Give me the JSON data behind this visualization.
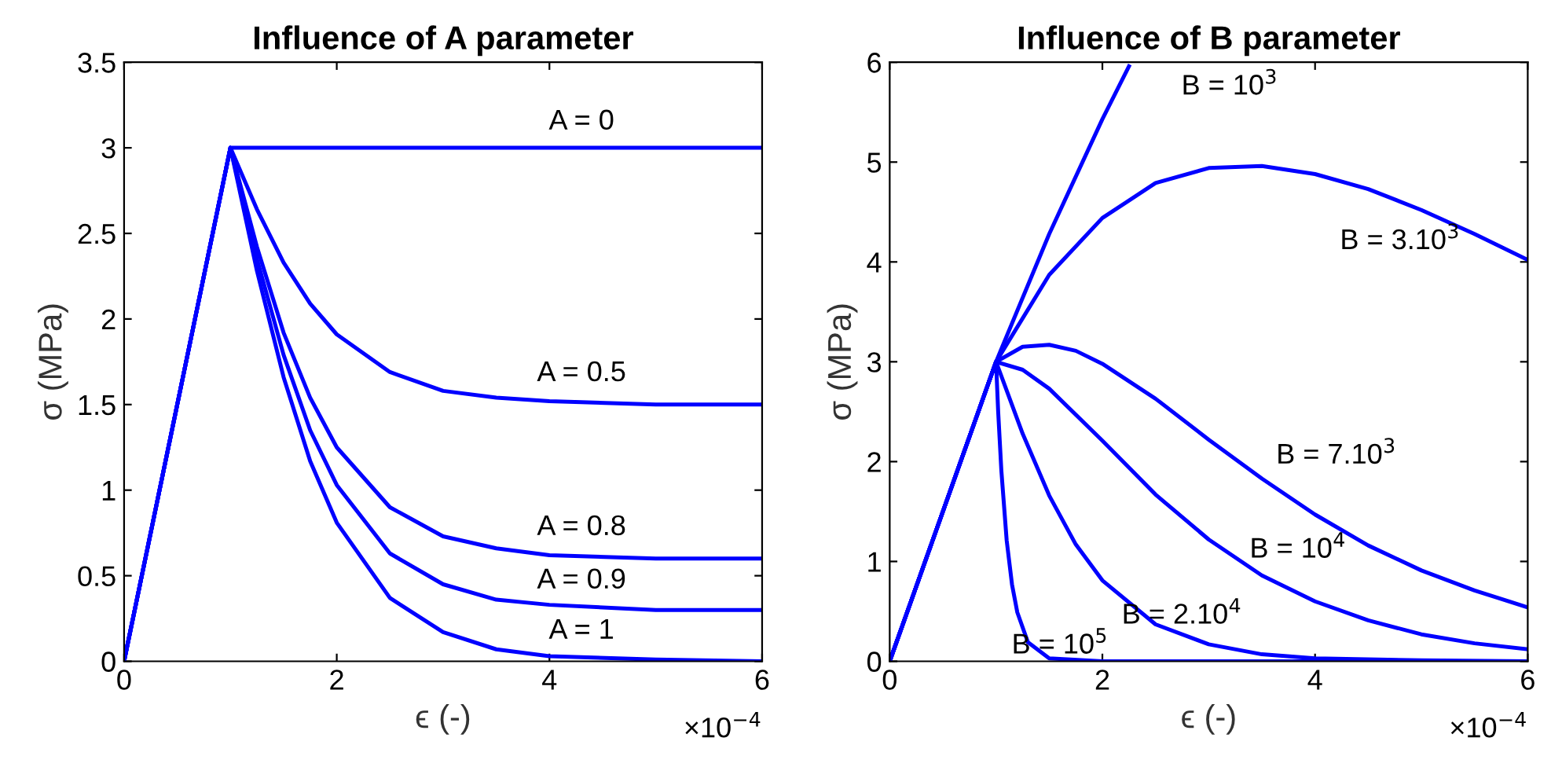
{
  "chart_data": [
    {
      "type": "line",
      "title": "Influence of A parameter",
      "xlabel": "ϵ (-)",
      "ylabel": "σ (MPa)",
      "xlim": [
        0,
        6
      ],
      "xticks": [
        0,
        2,
        4,
        6
      ],
      "ylim": [
        0,
        3.5
      ],
      "yticks": [
        0,
        0.5,
        1,
        1.5,
        2,
        2.5,
        3,
        3.5
      ],
      "grid": false,
      "legend": false,
      "marker": "none",
      "line_style": "solid",
      "x": [
        0,
        1,
        1.25,
        1.5,
        1.75,
        2,
        2.5,
        3,
        3.5,
        4,
        5,
        6
      ],
      "series": [
        {
          "name": "A = 0",
          "color": "#0000ff",
          "values": [
            0,
            3,
            3,
            3,
            3,
            3,
            3,
            3,
            3,
            3,
            3,
            3
          ]
        },
        {
          "name": "A = 0.5",
          "color": "#0000ff",
          "values": [
            0,
            3,
            2.64,
            2.33,
            2.09,
            1.91,
            1.69,
            1.58,
            1.54,
            1.52,
            1.5,
            1.5
          ]
        },
        {
          "name": "A = 0.8",
          "color": "#0000ff",
          "values": [
            0,
            3,
            2.42,
            1.92,
            1.54,
            1.25,
            0.9,
            0.73,
            0.66,
            0.62,
            0.6,
            0.6
          ]
        },
        {
          "name": "A = 0.9",
          "color": "#0000ff",
          "values": [
            0,
            3,
            2.35,
            1.79,
            1.35,
            1.03,
            0.63,
            0.45,
            0.36,
            0.33,
            0.3,
            0.3
          ]
        },
        {
          "name": "A = 1",
          "color": "#0000ff",
          "values": [
            0,
            3,
            2.28,
            1.66,
            1.17,
            0.81,
            0.37,
            0.17,
            0.07,
            0.03,
            0.01,
            0
          ]
        }
      ],
      "annotations": [
        "×10$^{−4}$"
      ]
    },
    {
      "type": "line",
      "title": "Influence of B parameter",
      "xlabel": "ϵ (-)",
      "ylabel": "σ (MPa)",
      "xlim": [
        0,
        6
      ],
      "xticks": [
        0,
        2,
        4,
        6
      ],
      "ylim": [
        0,
        6
      ],
      "yticks": [
        0,
        1,
        2,
        3,
        4,
        5,
        6
      ],
      "grid": false,
      "legend": false,
      "marker": "none",
      "line_style": "solid",
      "series": [
        {
          "name": "B = 10$^{3}$",
          "color": "#0000ff",
          "x": [
            0,
            1,
            1.5,
            2,
            2.25
          ],
          "values": [
            0,
            3,
            4.28,
            5.43,
            5.96
          ]
        },
        {
          "name": "B = 3.10$^{3}$",
          "color": "#0000ff",
          "x": [
            0,
            1,
            1.5,
            2,
            2.5,
            3,
            3.5,
            4,
            4.5,
            5,
            5.5,
            6
          ],
          "values": [
            0,
            3,
            3.87,
            4.44,
            4.79,
            4.94,
            4.96,
            4.88,
            4.73,
            4.52,
            4.28,
            4.02
          ]
        },
        {
          "name": "B = 7.10$^{3}$",
          "color": "#0000ff",
          "x": [
            0,
            1,
            1.25,
            1.5,
            1.75,
            2,
            2.5,
            3,
            3.5,
            4,
            4.5,
            5,
            5.5,
            6
          ],
          "values": [
            0,
            3,
            3.15,
            3.17,
            3.11,
            2.98,
            2.63,
            2.22,
            1.83,
            1.47,
            1.16,
            0.91,
            0.71,
            0.54
          ]
        },
        {
          "name": "B = 10$^{4}$",
          "color": "#0000ff",
          "x": [
            0,
            1,
            1.25,
            1.5,
            2,
            2.5,
            3,
            3.5,
            4,
            4.5,
            5,
            5.5,
            6
          ],
          "values": [
            0,
            3,
            2.92,
            2.73,
            2.21,
            1.67,
            1.22,
            0.86,
            0.6,
            0.41,
            0.27,
            0.18,
            0.12
          ]
        },
        {
          "name": "B = 2.10$^{4}$",
          "color": "#0000ff",
          "x": [
            0,
            1,
            1.25,
            1.5,
            1.75,
            2,
            2.5,
            3,
            3.5,
            4,
            5,
            6
          ],
          "values": [
            0,
            3,
            2.28,
            1.66,
            1.17,
            0.81,
            0.37,
            0.17,
            0.07,
            0.03,
            0.01,
            0
          ]
        },
        {
          "name": "B = 10$^{5}$",
          "color": "#0000ff",
          "x": [
            0,
            1,
            1.02,
            1.05,
            1.1,
            1.15,
            1.2,
            1.3,
            1.5,
            2,
            6
          ],
          "values": [
            0,
            3,
            2.5,
            1.91,
            1.21,
            0.77,
            0.49,
            0.19,
            0.03,
            0,
            0
          ]
        }
      ],
      "annotations": [
        "×10$^{−4}$"
      ]
    }
  ]
}
